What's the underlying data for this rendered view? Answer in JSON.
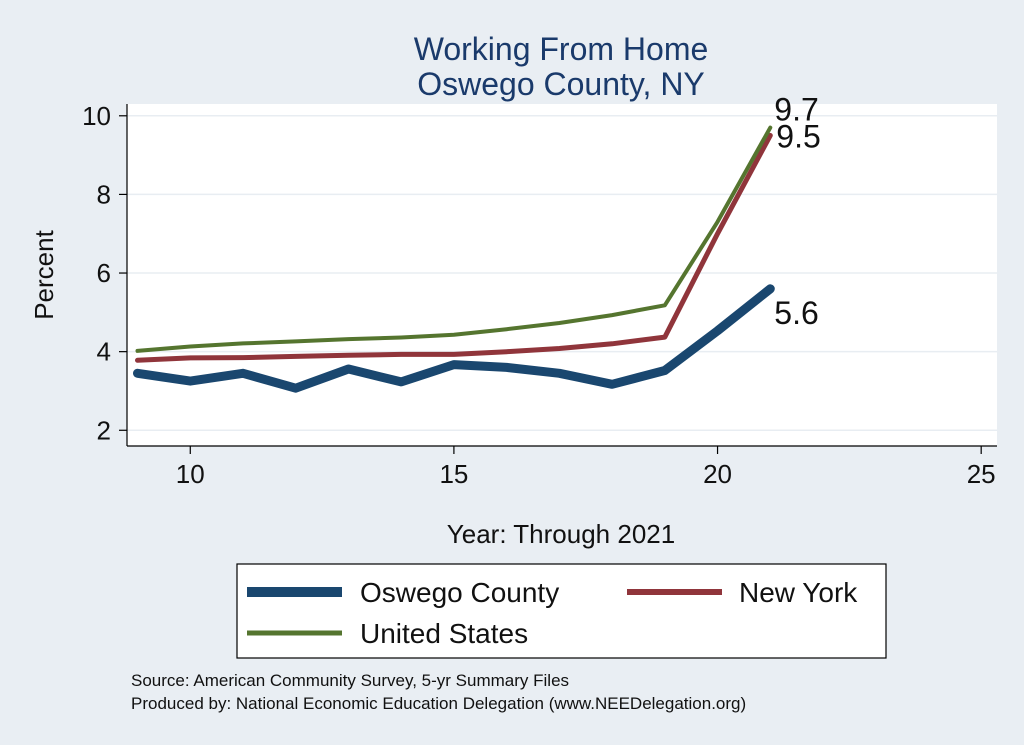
{
  "chart_data": {
    "type": "line",
    "title": [
      "Working From Home",
      "Oswego County, NY"
    ],
    "xlabel": "Year: Through 2021",
    "ylabel": "Percent",
    "xlim": [
      8.8,
      25.3
    ],
    "ylim": [
      1.6,
      10.3
    ],
    "xticks": [
      10,
      15,
      20,
      25
    ],
    "yticks": [
      2,
      4,
      6,
      8,
      10
    ],
    "grid": "horizontal",
    "legend_position": "bottom",
    "x": [
      9,
      10,
      11,
      12,
      13,
      14,
      15,
      16,
      17,
      18,
      19,
      20,
      21
    ],
    "series": [
      {
        "name": "Oswego County",
        "color": "#1a476f",
        "values": [
          3.45,
          3.25,
          3.45,
          3.07,
          3.56,
          3.23,
          3.67,
          3.6,
          3.45,
          3.17,
          3.52,
          4.53,
          5.6
        ],
        "end_label": "5.6"
      },
      {
        "name": "New York",
        "color": "#90353b",
        "values": [
          3.78,
          3.84,
          3.85,
          3.88,
          3.91,
          3.93,
          3.93,
          4.0,
          4.08,
          4.2,
          4.37,
          7.0,
          9.5
        ],
        "end_label": "9.5"
      },
      {
        "name": "United States",
        "color": "#55752f",
        "values": [
          4.02,
          4.13,
          4.21,
          4.26,
          4.32,
          4.36,
          4.43,
          4.57,
          4.73,
          4.93,
          5.18,
          7.3,
          9.7
        ],
        "end_label": "9.7"
      }
    ],
    "notes": [
      "Source: American Community Survey, 5-yr Summary Files",
      "Produced by: National Economic Education Delegation (www.NEEDelegation.org)"
    ]
  }
}
